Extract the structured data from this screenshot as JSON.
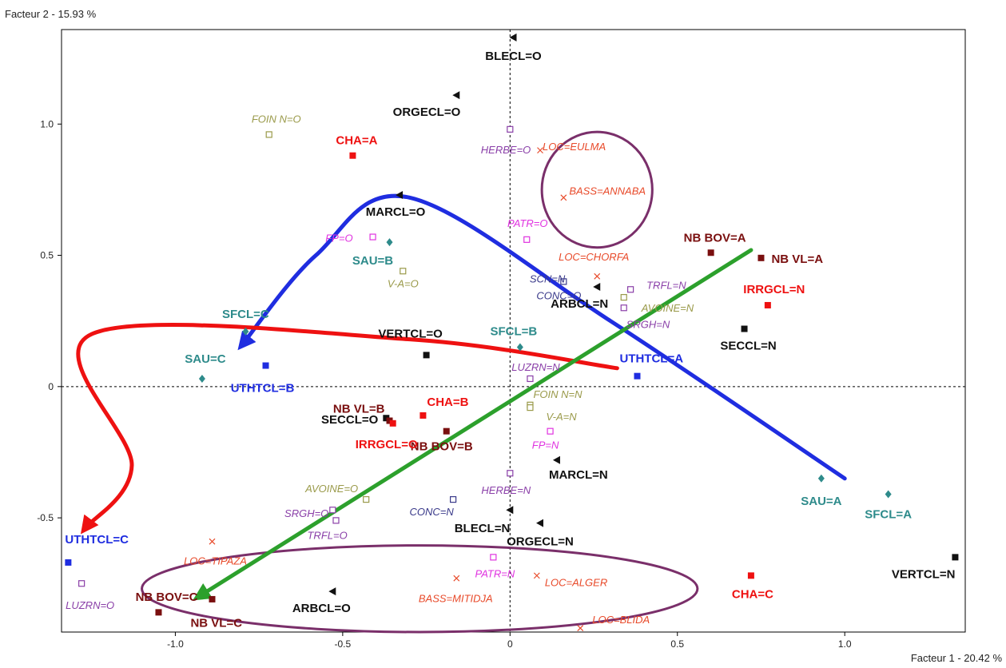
{
  "chart_data": {
    "type": "scatter",
    "xlabel": "Facteur 1  -  20.42 %",
    "ylabel": "Facteur 2  -  15.93 %",
    "xlim": [
      -1.34,
      1.36
    ],
    "ylim": [
      -0.935,
      1.36
    ],
    "xticks": [
      {
        "value": -1.0,
        "label": "-1.0"
      },
      {
        "value": -0.5,
        "label": "-0.5"
      },
      {
        "value": 0,
        "label": "0"
      },
      {
        "value": 0.5,
        "label": "0.5"
      },
      {
        "value": 1.0,
        "label": "1.0"
      }
    ],
    "yticks": [
      {
        "value": -0.5,
        "label": "-0.5"
      },
      {
        "value": 0,
        "label": "0"
      },
      {
        "value": 0.5,
        "label": "0.5"
      },
      {
        "value": 1.0,
        "label": "1.0"
      }
    ],
    "grid": false,
    "zero_lines": true,
    "colors": {
      "black": "#111111",
      "darkred": "#7a0f0f",
      "red": "#ee1111",
      "blue": "#1f2de0",
      "teal": "#2e8b8b",
      "purple": "#8a3fa8",
      "navy": "#3a3a8a",
      "magenta": "#e033e0",
      "olive": "#9a9a4a",
      "orangered": "#e84a2a"
    },
    "points": [
      {
        "label": "BLECL=O",
        "x": 0.01,
        "y": 1.33,
        "marker": "triangle",
        "color": "black",
        "style": "bold",
        "anchor": "middle",
        "dx": 0,
        "dy": 28
      },
      {
        "label": "ORGECL=O",
        "x": -0.16,
        "y": 1.11,
        "marker": "triangle",
        "color": "black",
        "style": "bold",
        "anchor": "end",
        "dx": 5,
        "dy": 26
      },
      {
        "label": "MARCL=O",
        "x": -0.33,
        "y": 0.73,
        "marker": "triangle",
        "color": "black",
        "style": "bold",
        "anchor": "middle",
        "dx": -5,
        "dy": 26
      },
      {
        "label": "ARBCL=N",
        "x": 0.26,
        "y": 0.38,
        "marker": "triangle",
        "color": "black",
        "style": "bold",
        "anchor": "middle",
        "dx": -22,
        "dy": 26
      },
      {
        "label": "VERTCL=O",
        "x": -0.25,
        "y": 0.12,
        "marker": "square",
        "color": "black",
        "style": "bold",
        "anchor": "middle",
        "dx": -20,
        "dy": -22
      },
      {
        "label": "SECCL=O",
        "x": -0.37,
        "y": -0.12,
        "marker": "square",
        "color": "black",
        "style": "bold",
        "anchor": "end",
        "dx": -10,
        "dy": 7
      },
      {
        "label": "MARCL=N",
        "x": 0.14,
        "y": -0.28,
        "marker": "triangle",
        "color": "black",
        "style": "bold",
        "anchor": "start",
        "dx": -10,
        "dy": 23
      },
      {
        "label": "BLECL=N",
        "x": 0.0,
        "y": -0.47,
        "marker": "triangle",
        "color": "black",
        "style": "bold",
        "anchor": "end",
        "dx": 0,
        "dy": 28
      },
      {
        "label": "ORGECL=N",
        "x": 0.09,
        "y": -0.52,
        "marker": "triangle",
        "color": "black",
        "style": "bold",
        "anchor": "middle",
        "dx": 0,
        "dy": 28
      },
      {
        "label": "ARBCL=O",
        "x": -0.53,
        "y": -0.78,
        "marker": "triangle",
        "color": "black",
        "style": "bold",
        "anchor": "middle",
        "dx": -14,
        "dy": 26
      },
      {
        "label": "SECCL=N",
        "x": 0.7,
        "y": 0.22,
        "marker": "square",
        "color": "black",
        "style": "bold",
        "anchor": "middle",
        "dx": 5,
        "dy": 26
      },
      {
        "label": "VERTCL=N",
        "x": 1.33,
        "y": -0.65,
        "marker": "square",
        "color": "black",
        "style": "bold",
        "anchor": "end",
        "dx": 0,
        "dy": 26
      },
      {
        "label": "NB BOV=A",
        "x": 0.6,
        "y": 0.51,
        "marker": "square",
        "color": "darkred",
        "style": "bold",
        "anchor": "middle",
        "dx": 5,
        "dy": -14
      },
      {
        "label": "NB VL=A",
        "x": 0.75,
        "y": 0.49,
        "marker": "square",
        "color": "darkred",
        "style": "bold",
        "anchor": "start",
        "dx": 13,
        "dy": 6
      },
      {
        "label": "NB VL=B",
        "x": -0.36,
        "y": -0.13,
        "marker": "square",
        "color": "darkred",
        "style": "bold",
        "anchor": "end",
        "dx": -6,
        "dy": -10
      },
      {
        "label": "NB BOV=B",
        "x": -0.19,
        "y": -0.17,
        "marker": "square",
        "color": "darkred",
        "style": "bold",
        "anchor": "middle",
        "dx": -6,
        "dy": 24
      },
      {
        "label": "NB BOV=C",
        "x": -0.89,
        "y": -0.81,
        "marker": "square",
        "color": "darkred",
        "style": "bold",
        "anchor": "end",
        "dx": -18,
        "dy": 2
      },
      {
        "label": "NB VL=C",
        "x": -1.05,
        "y": -0.86,
        "marker": "square",
        "color": "darkred",
        "style": "bold",
        "anchor": "start",
        "dx": 40,
        "dy": 18
      },
      {
        "label": "CHA=A",
        "x": -0.47,
        "y": 0.88,
        "marker": "square",
        "color": "red",
        "style": "bold",
        "anchor": "middle",
        "dx": 5,
        "dy": -14
      },
      {
        "label": "IRRGCL=N",
        "x": 0.77,
        "y": 0.31,
        "marker": "square",
        "color": "red",
        "style": "bold",
        "anchor": "middle",
        "dx": 8,
        "dy": -15
      },
      {
        "label": "CHA=B",
        "x": -0.26,
        "y": -0.11,
        "marker": "square",
        "color": "red",
        "style": "bold",
        "anchor": "start",
        "dx": 5,
        "dy": -12
      },
      {
        "label": "IRRGCL=O",
        "x": -0.35,
        "y": -0.14,
        "marker": "square",
        "color": "red",
        "style": "bold",
        "anchor": "middle",
        "dx": -8,
        "dy": 31
      },
      {
        "label": "CHA=C",
        "x": 0.72,
        "y": -0.72,
        "marker": "square",
        "color": "red",
        "style": "bold",
        "anchor": "middle",
        "dx": 2,
        "dy": 28
      },
      {
        "label": "UTHTCL=A",
        "x": 0.38,
        "y": 0.04,
        "marker": "square",
        "color": "blue",
        "style": "bold",
        "anchor": "start",
        "dx": -22,
        "dy": -17
      },
      {
        "label": "UTHTCL=B",
        "x": -0.73,
        "y": 0.08,
        "marker": "square",
        "color": "blue",
        "style": "bold",
        "anchor": "middle",
        "dx": -4,
        "dy": 33
      },
      {
        "label": "UTHTCL=C",
        "x": -1.32,
        "y": -0.67,
        "marker": "square",
        "color": "blue",
        "style": "bold",
        "anchor": "start",
        "dx": -4,
        "dy": -24
      },
      {
        "label": "SAU=B",
        "x": -0.36,
        "y": 0.55,
        "marker": "diamond",
        "color": "teal",
        "style": "bold",
        "anchor": "middle",
        "dx": -21,
        "dy": 28
      },
      {
        "label": "SAU=C",
        "x": -0.92,
        "y": 0.03,
        "marker": "diamond",
        "color": "teal",
        "style": "bold",
        "anchor": "middle",
        "dx": 4,
        "dy": -20
      },
      {
        "label": "SAU=A",
        "x": 0.93,
        "y": -0.35,
        "marker": "diamond",
        "color": "teal",
        "style": "bold",
        "anchor": "middle",
        "dx": 0,
        "dy": 33
      },
      {
        "label": "SFCL=C",
        "x": -0.79,
        "y": 0.21,
        "marker": "diamond",
        "color": "teal",
        "style": "bold",
        "anchor": "middle",
        "dx": 0,
        "dy": -17
      },
      {
        "label": "SFCL=B",
        "x": 0.03,
        "y": 0.15,
        "marker": "diamond",
        "color": "teal",
        "style": "bold",
        "anchor": "middle",
        "dx": -8,
        "dy": -15
      },
      {
        "label": "SFCL=A",
        "x": 1.13,
        "y": -0.41,
        "marker": "diamond",
        "color": "teal",
        "style": "bold",
        "anchor": "middle",
        "dx": 0,
        "dy": 30
      },
      {
        "label": "HERBE=O",
        "x": 0.0,
        "y": 0.98,
        "marker": "open-square",
        "color": "purple",
        "style": "italic",
        "anchor": "end",
        "dx": 26,
        "dy": 30
      },
      {
        "label": "HERBE=N",
        "x": 0.0,
        "y": -0.33,
        "marker": "open-square",
        "color": "purple",
        "style": "italic",
        "anchor": "middle",
        "dx": -5,
        "dy": 26
      },
      {
        "label": "TRFL=N",
        "x": 0.36,
        "y": 0.37,
        "marker": "open-square",
        "color": "purple",
        "style": "italic",
        "anchor": "start",
        "dx": 20,
        "dy": -1
      },
      {
        "label": "SRGH=N",
        "x": 0.34,
        "y": 0.3,
        "marker": "open-square",
        "color": "purple",
        "style": "italic",
        "anchor": "start",
        "dx": 3,
        "dy": 25
      },
      {
        "label": "LUZRN=N",
        "x": 0.06,
        "y": 0.03,
        "marker": "open-square",
        "color": "purple",
        "style": "italic",
        "anchor": "middle",
        "dx": 7,
        "dy": -10
      },
      {
        "label": "SRGH=O",
        "x": -0.53,
        "y": -0.47,
        "marker": "open-square",
        "color": "purple",
        "style": "italic",
        "anchor": "end",
        "dx": -5,
        "dy": 9
      },
      {
        "label": "TRFL=O",
        "x": -0.52,
        "y": -0.51,
        "marker": "open-square",
        "color": "purple",
        "style": "italic",
        "anchor": "start",
        "dx": -36,
        "dy": 23
      },
      {
        "label": "LUZRN=O",
        "x": -1.28,
        "y": -0.75,
        "marker": "open-square",
        "color": "purple",
        "style": "italic",
        "anchor": "start",
        "dx": -20,
        "dy": 32
      },
      {
        "label": "SCN=N",
        "x": 0.16,
        "y": 0.4,
        "marker": "open-square",
        "color": "navy",
        "style": "italic",
        "anchor": "end",
        "dx": 2,
        "dy": 1
      },
      {
        "label": "CONC=O",
        "x": 0.16,
        "y": 0.4,
        "marker": "none",
        "color": "navy",
        "style": "italic",
        "anchor": "end",
        "dx": 22,
        "dy": 22
      },
      {
        "label": "CONC=N",
        "x": -0.17,
        "y": -0.43,
        "marker": "open-square",
        "color": "navy",
        "style": "italic",
        "anchor": "middle",
        "dx": -27,
        "dy": 20
      },
      {
        "label": "FP=O",
        "x": -0.41,
        "y": 0.57,
        "marker": "open-square",
        "color": "magenta",
        "style": "italic",
        "anchor": "end",
        "dx": -25,
        "dy": 6
      },
      {
        "label": "PATR=O",
        "x": 0.05,
        "y": 0.56,
        "marker": "open-square",
        "color": "magenta",
        "style": "italic",
        "anchor": "middle",
        "dx": 1,
        "dy": -16
      },
      {
        "label": "FP=N",
        "x": 0.12,
        "y": -0.17,
        "marker": "open-square",
        "color": "magenta",
        "style": "italic",
        "anchor": "middle",
        "dx": -6,
        "dy": 22
      },
      {
        "label": "PATR=N",
        "x": -0.05,
        "y": -0.65,
        "marker": "open-square",
        "color": "magenta",
        "style": "italic",
        "anchor": "middle",
        "dx": 2,
        "dy": 25
      },
      {
        "label": "FOIN N=O",
        "x": -0.72,
        "y": 0.96,
        "marker": "open-square",
        "color": "olive",
        "style": "italic",
        "anchor": "middle",
        "dx": 9,
        "dy": -15
      },
      {
        "label": "V-A=O",
        "x": -0.32,
        "y": 0.44,
        "marker": "open-square",
        "color": "olive",
        "style": "italic",
        "anchor": "middle",
        "dx": 0,
        "dy": 20
      },
      {
        "label": "AVOINE=N",
        "x": 0.34,
        "y": 0.34,
        "marker": "open-square",
        "color": "olive",
        "style": "italic",
        "anchor": "start",
        "dx": 22,
        "dy": 18
      },
      {
        "label": "FOIN N=N",
        "x": 0.06,
        "y": -0.07,
        "marker": "open-square",
        "color": "olive",
        "style": "italic",
        "anchor": "start",
        "dx": 4,
        "dy": -9
      },
      {
        "label": "V-A=N",
        "x": 0.06,
        "y": -0.08,
        "marker": "open-square",
        "color": "olive",
        "style": "italic",
        "anchor": "start",
        "dx": 20,
        "dy": 16
      },
      {
        "label": "AVOINE=O",
        "x": -0.43,
        "y": -0.43,
        "marker": "open-square",
        "color": "olive",
        "style": "italic",
        "anchor": "end",
        "dx": -10,
        "dy": -9
      },
      {
        "label": "LOC=EULMA",
        "x": 0.09,
        "y": 0.9,
        "marker": "cross",
        "color": "orangered",
        "style": "italic",
        "anchor": "start",
        "dx": 3,
        "dy": 0
      },
      {
        "label": "BASS=ANNABA",
        "x": 0.16,
        "y": 0.72,
        "marker": "cross",
        "color": "orangered",
        "style": "italic",
        "anchor": "start",
        "dx": 7,
        "dy": -4
      },
      {
        "label": "LOC=CHORFA",
        "x": 0.26,
        "y": 0.42,
        "marker": "cross",
        "color": "orangered",
        "style": "italic",
        "anchor": "middle",
        "dx": -4,
        "dy": -20
      },
      {
        "label": "LOC=TIPAZA",
        "x": -0.89,
        "y": -0.59,
        "marker": "cross",
        "color": "orangered",
        "style": "italic",
        "anchor": "middle",
        "dx": 4,
        "dy": 29
      },
      {
        "label": "BASS=MITIDJA",
        "x": -0.16,
        "y": -0.73,
        "marker": "cross",
        "color": "orangered",
        "style": "italic",
        "anchor": "middle",
        "dx": -1,
        "dy": 30
      },
      {
        "label": "LOC=ALGER",
        "x": 0.08,
        "y": -0.72,
        "marker": "cross",
        "color": "orangered",
        "style": "italic",
        "anchor": "start",
        "dx": 10,
        "dy": 13
      },
      {
        "label": "LOC=BLIDA",
        "x": 0.21,
        "y": -0.92,
        "marker": "cross",
        "color": "orangered",
        "style": "italic",
        "anchor": "start",
        "dx": 15,
        "dy": -6
      }
    ],
    "ellipses": [
      {
        "cx": 0.26,
        "cy": 0.75,
        "rx": 0.33,
        "ry": 0.44,
        "color": "#7a2f6a"
      },
      {
        "cx": -0.27,
        "cy": -0.77,
        "rx": 1.66,
        "ry": 0.33,
        "color": "#7a2f6a"
      }
    ],
    "arrows": [
      {
        "color": "#1f2de0",
        "points": [
          [
            1.0,
            -0.35
          ],
          [
            0.3,
            0.25
          ],
          [
            -0.3,
            0.72
          ],
          [
            -0.58,
            0.5
          ],
          [
            -0.8,
            0.16
          ]
        ]
      },
      {
        "color": "#ee1111",
        "points": [
          [
            0.32,
            0.07
          ],
          [
            -0.3,
            0.18
          ],
          [
            -1.25,
            0.2
          ],
          [
            -1.13,
            -0.3
          ],
          [
            -1.27,
            -0.54
          ]
        ]
      },
      {
        "color": "#2ca02c",
        "points": [
          [
            0.72,
            0.52
          ],
          [
            0.1,
            0.0
          ],
          [
            -0.4,
            -0.4
          ],
          [
            -0.93,
            -0.8
          ]
        ]
      }
    ]
  }
}
